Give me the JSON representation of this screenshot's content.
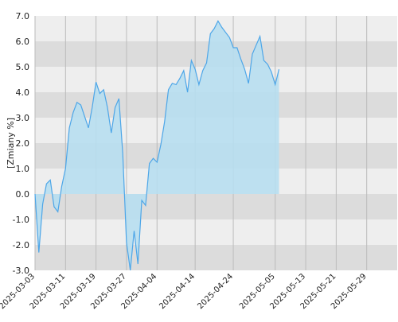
{
  "chart_data": {
    "type": "area",
    "title": "",
    "xlabel": "",
    "ylabel": "[Zmiany %]",
    "ylim": [
      -3.0,
      7.0
    ],
    "yticks": [
      -3.0,
      -2.0,
      -1.0,
      0.0,
      1.0,
      2.0,
      3.0,
      4.0,
      5.0,
      6.0,
      7.0
    ],
    "ytick_labels": [
      "-3.0",
      "-2.0",
      "-1.0",
      "0.0",
      "1.0",
      "2.0",
      "3.0",
      "4.0",
      "5.0",
      "6.0",
      "7.0"
    ],
    "xlim": [
      "2025-03-03",
      "2025-06-06"
    ],
    "xticks": [
      "2025-03-03",
      "2025-03-11",
      "2025-03-19",
      "2025-03-27",
      "2025-04-04",
      "2025-04-14",
      "2025-04-24",
      "2025-05-05",
      "2025-05-13",
      "2025-05-21",
      "2025-05-29"
    ],
    "grid": true,
    "colors": {
      "line": "#4da6e8",
      "fill": "#b7deef",
      "band_light": "#eeeeee",
      "band_dark": "#dcdcdc",
      "vgrid": "#bbbbbb"
    },
    "series": [
      {
        "name": "",
        "points": [
          [
            "2025-03-03",
            0.0
          ],
          [
            "2025-03-04",
            -2.3
          ],
          [
            "2025-03-05",
            -0.4
          ],
          [
            "2025-03-06",
            0.4
          ],
          [
            "2025-03-07",
            0.55
          ],
          [
            "2025-03-08",
            -0.5
          ],
          [
            "2025-03-09",
            -0.7
          ],
          [
            "2025-03-10",
            0.3
          ],
          [
            "2025-03-11",
            1.0
          ],
          [
            "2025-03-12",
            2.6
          ],
          [
            "2025-03-13",
            3.2
          ],
          [
            "2025-03-14",
            3.6
          ],
          [
            "2025-03-15",
            3.5
          ],
          [
            "2025-03-16",
            3.05
          ],
          [
            "2025-03-17",
            2.6
          ],
          [
            "2025-03-18",
            3.4
          ],
          [
            "2025-03-19",
            4.4
          ],
          [
            "2025-03-20",
            3.95
          ],
          [
            "2025-03-21",
            4.1
          ],
          [
            "2025-03-22",
            3.4
          ],
          [
            "2025-03-23",
            2.4
          ],
          [
            "2025-03-24",
            3.4
          ],
          [
            "2025-03-25",
            3.75
          ],
          [
            "2025-03-26",
            1.6
          ],
          [
            "2025-03-27",
            -1.9
          ],
          [
            "2025-03-28",
            -3.0
          ],
          [
            "2025-03-29",
            -1.45
          ],
          [
            "2025-03-30",
            -2.75
          ],
          [
            "2025-03-31",
            -0.25
          ],
          [
            "2025-04-01",
            -0.45
          ],
          [
            "2025-04-02",
            1.2
          ],
          [
            "2025-04-03",
            1.4
          ],
          [
            "2025-04-04",
            1.25
          ],
          [
            "2025-04-05",
            1.95
          ],
          [
            "2025-04-06",
            2.85
          ],
          [
            "2025-04-07",
            4.1
          ],
          [
            "2025-04-08",
            4.35
          ],
          [
            "2025-04-09",
            4.3
          ],
          [
            "2025-04-10",
            4.55
          ],
          [
            "2025-04-11",
            4.85
          ],
          [
            "2025-04-12",
            4.0
          ],
          [
            "2025-04-13",
            5.25
          ],
          [
            "2025-04-14",
            4.9
          ],
          [
            "2025-04-15",
            4.3
          ],
          [
            "2025-04-16",
            4.85
          ],
          [
            "2025-04-17",
            5.15
          ],
          [
            "2025-04-18",
            6.3
          ],
          [
            "2025-04-19",
            6.5
          ],
          [
            "2025-04-20",
            6.8
          ],
          [
            "2025-04-21",
            6.55
          ],
          [
            "2025-04-22",
            6.35
          ],
          [
            "2025-04-23",
            6.15
          ],
          [
            "2025-04-24",
            5.75
          ],
          [
            "2025-04-25",
            5.75
          ],
          [
            "2025-04-26",
            5.3
          ],
          [
            "2025-04-27",
            4.9
          ],
          [
            "2025-04-28",
            4.35
          ],
          [
            "2025-04-29",
            5.5
          ],
          [
            "2025-04-30",
            5.85
          ],
          [
            "2025-05-01",
            6.2
          ],
          [
            "2025-05-02",
            5.25
          ],
          [
            "2025-05-03",
            5.1
          ],
          [
            "2025-05-04",
            4.8
          ],
          [
            "2025-05-05",
            4.3
          ],
          [
            "2025-05-06",
            4.9
          ]
        ]
      }
    ]
  }
}
